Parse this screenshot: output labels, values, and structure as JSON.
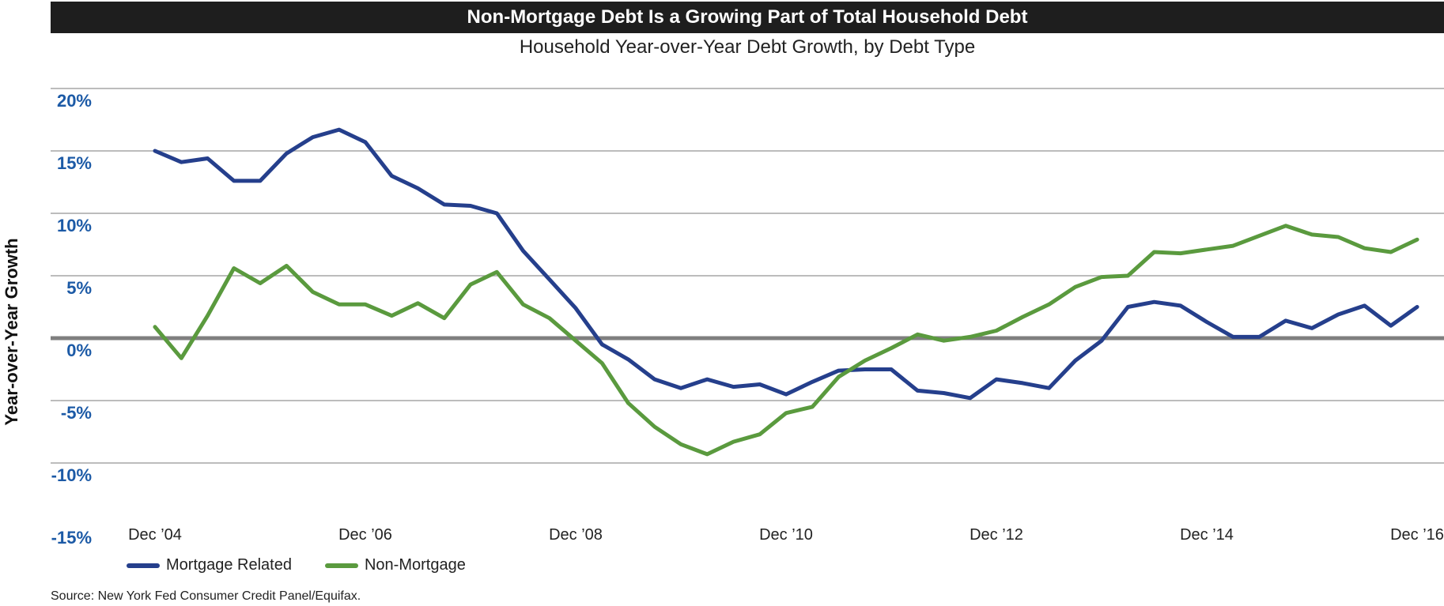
{
  "header": {
    "title": "Non-Mortgage Debt Is a Growing Part of Total Household Debt",
    "subtitle": "Household Year-over-Year Debt Growth, by Debt Type"
  },
  "source": "Source: New York Fed Consumer Credit Panel/Equifax.",
  "colors": {
    "mortgage": "#253f8c",
    "non_mortgage": "#5a9a3e",
    "zero_line": "#7f7f7f",
    "grid": "#a6a6a6",
    "ytick": "#1c5aa6"
  },
  "chart_data": {
    "type": "line",
    "title": "Non-Mortgage Debt Is a Growing Part of Total Household Debt",
    "subtitle": "Household Year-over-Year Debt Growth, by Debt Type",
    "ylabel": "Year-over-Year Growth",
    "xlabel": "",
    "ylim": [
      -15,
      20
    ],
    "yticks": [
      20,
      15,
      10,
      5,
      0,
      -5,
      -10,
      -15
    ],
    "ytick_labels": [
      "20%",
      "15%",
      "10%",
      "5%",
      "0%",
      "-5%",
      "-10%",
      "-15%"
    ],
    "x_start": 2004.917,
    "x_end": 2016.917,
    "xticks": [
      {
        "x": 2004.917,
        "label": "Dec ’04"
      },
      {
        "x": 2006.917,
        "label": "Dec ’06"
      },
      {
        "x": 2008.917,
        "label": "Dec ’08"
      },
      {
        "x": 2010.917,
        "label": "Dec ’10"
      },
      {
        "x": 2012.917,
        "label": "Dec ’12"
      },
      {
        "x": 2014.917,
        "label": "Dec ’14"
      },
      {
        "x": 2016.917,
        "label": "Dec ’16"
      }
    ],
    "grid": true,
    "legend_position": "bottom-left",
    "series": [
      {
        "name": "Mortgage Related",
        "color": "#253f8c",
        "values": [
          15.0,
          14.1,
          14.4,
          12.6,
          12.6,
          14.8,
          16.1,
          16.7,
          15.7,
          13.0,
          12.0,
          10.7,
          10.6,
          10.0,
          7.0,
          4.7,
          2.4,
          -0.5,
          -1.7,
          -3.3,
          -4.0,
          -3.3,
          -3.9,
          -3.7,
          -4.5,
          -3.5,
          -2.6,
          -2.5,
          -2.5,
          -4.2,
          -4.4,
          -4.8,
          -3.3,
          -3.6,
          -4.0,
          -1.8,
          -0.2,
          2.5,
          2.9,
          2.6,
          1.3,
          0.1,
          0.1,
          1.4,
          0.8,
          1.9,
          2.6,
          1.0,
          2.5
        ]
      },
      {
        "name": "Non-Mortgage",
        "color": "#5a9a3e",
        "values": [
          0.9,
          -1.6,
          1.8,
          5.6,
          4.4,
          5.8,
          3.7,
          2.7,
          2.7,
          1.8,
          2.8,
          1.6,
          4.3,
          5.3,
          2.7,
          1.6,
          -0.2,
          -2.0,
          -5.2,
          -7.1,
          -8.5,
          -9.3,
          -8.3,
          -7.7,
          -6.0,
          -5.5,
          -3.1,
          -1.8,
          -0.8,
          0.3,
          -0.2,
          0.1,
          0.6,
          1.7,
          2.7,
          4.1,
          4.9,
          5.0,
          6.9,
          6.8,
          7.1,
          7.4,
          8.2,
          9.0,
          8.3,
          8.1,
          7.2,
          6.9,
          7.9
        ]
      }
    ]
  }
}
